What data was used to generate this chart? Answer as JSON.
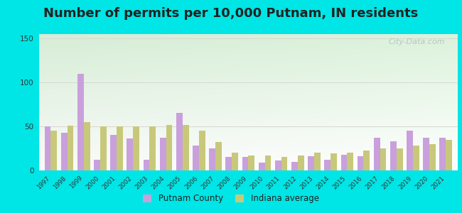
{
  "title": "Number of permits per 10,000 Putnam, IN residents",
  "years": [
    1997,
    1998,
    1999,
    2000,
    2001,
    2002,
    2003,
    2004,
    2005,
    2006,
    2007,
    2008,
    2009,
    2010,
    2011,
    2012,
    2013,
    2014,
    2015,
    2016,
    2017,
    2018,
    2019,
    2020,
    2021
  ],
  "putnam": [
    50,
    43,
    110,
    12,
    40,
    36,
    12,
    37,
    65,
    28,
    25,
    15,
    15,
    9,
    11,
    10,
    16,
    12,
    18,
    16,
    37,
    33,
    45,
    37,
    37
  ],
  "indiana": [
    45,
    51,
    55,
    50,
    50,
    50,
    50,
    52,
    52,
    45,
    32,
    20,
    17,
    17,
    15,
    17,
    20,
    19,
    20,
    23,
    25,
    25,
    28,
    30,
    35
  ],
  "putnam_color": "#c9a0dc",
  "indiana_color": "#c8c87a",
  "background_outer": "#00e5e5",
  "grid_color": "#d8d8d0",
  "yticks": [
    0,
    50,
    100,
    150
  ],
  "ylim": [
    0,
    155
  ],
  "title_fontsize": 13,
  "title_color": "#222222",
  "watermark": "City-Data.com",
  "bar_width": 0.38
}
